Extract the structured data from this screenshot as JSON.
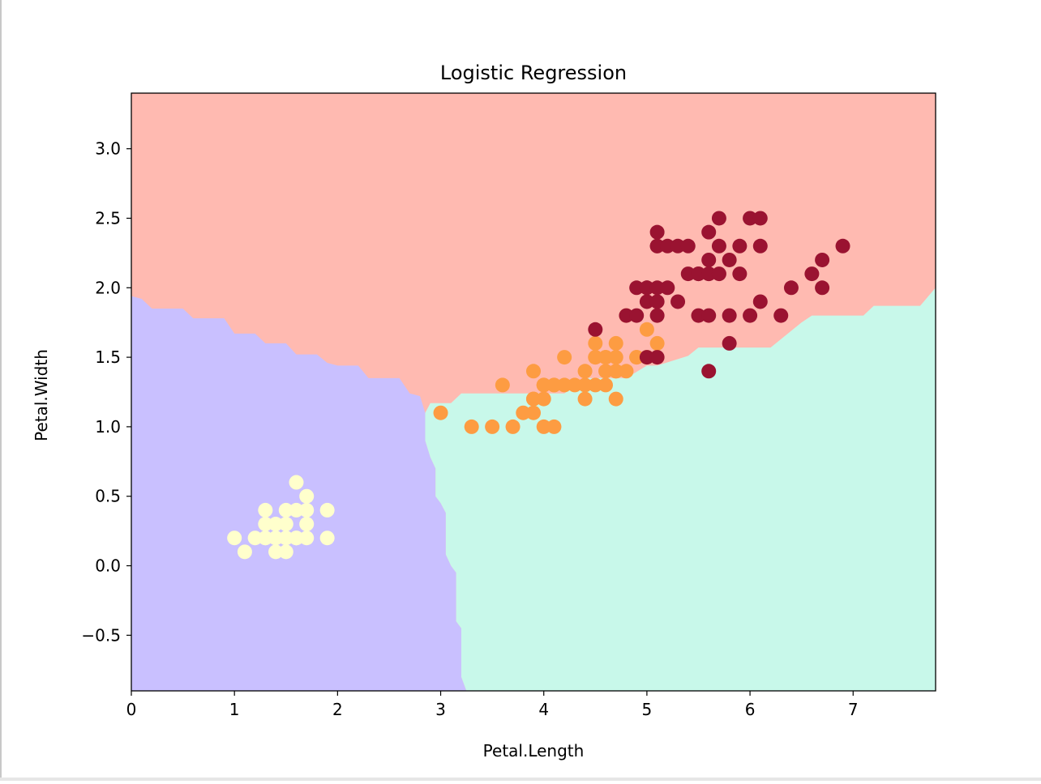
{
  "chart_data": {
    "type": "scatter",
    "title": "Logistic Regression",
    "xlabel": "Petal.Length",
    "ylabel": "Petal.Width",
    "xlim": [
      0,
      7.8
    ],
    "ylim": [
      -0.9,
      3.4
    ],
    "grid": false,
    "legend": "none",
    "x_ticks": [
      {
        "value": 0,
        "label": "0"
      },
      {
        "value": 1,
        "label": "1"
      },
      {
        "value": 2,
        "label": "2"
      },
      {
        "value": 3,
        "label": "3"
      },
      {
        "value": 4,
        "label": "4"
      },
      {
        "value": 5,
        "label": "5"
      },
      {
        "value": 6,
        "label": "6"
      },
      {
        "value": 7,
        "label": "7"
      }
    ],
    "y_ticks": [
      {
        "value": -0.5,
        "label": "−0.5"
      },
      {
        "value": 0.0,
        "label": "0.0"
      },
      {
        "value": 0.5,
        "label": "0.5"
      },
      {
        "value": 1.0,
        "label": "1.0"
      },
      {
        "value": 1.5,
        "label": "1.5"
      },
      {
        "value": 2.0,
        "label": "2.0"
      },
      {
        "value": 2.5,
        "label": "2.5"
      },
      {
        "value": 3.0,
        "label": "3.0"
      }
    ],
    "regions": [
      {
        "color": "#c9c0ff",
        "boundary": [
          [
            0,
            1.94
          ],
          [
            0.1,
            1.92
          ],
          [
            0.2,
            1.85
          ],
          [
            0.5,
            1.85
          ],
          [
            0.6,
            1.78
          ],
          [
            0.9,
            1.78
          ],
          [
            1.0,
            1.67
          ],
          [
            1.2,
            1.67
          ],
          [
            1.3,
            1.6
          ],
          [
            1.5,
            1.6
          ],
          [
            1.6,
            1.52
          ],
          [
            1.8,
            1.52
          ],
          [
            1.9,
            1.46
          ],
          [
            2.0,
            1.44
          ],
          [
            2.2,
            1.44
          ],
          [
            2.3,
            1.35
          ],
          [
            2.6,
            1.35
          ],
          [
            2.7,
            1.24
          ],
          [
            2.8,
            1.22
          ],
          [
            2.85,
            1.1
          ],
          [
            2.85,
            0.9
          ],
          [
            2.9,
            0.78
          ],
          [
            2.95,
            0.7
          ],
          [
            2.95,
            0.5
          ],
          [
            3.0,
            0.45
          ],
          [
            3.05,
            0.38
          ],
          [
            3.05,
            0.08
          ],
          [
            3.1,
            0.0
          ],
          [
            3.15,
            -0.05
          ],
          [
            3.15,
            -0.4
          ],
          [
            3.2,
            -0.45
          ],
          [
            3.2,
            -0.8
          ],
          [
            3.25,
            -0.9
          ]
        ]
      },
      {
        "color": "#c8f8ea",
        "boundary": [
          [
            2.9,
            1.17
          ],
          [
            3.1,
            1.17
          ],
          [
            3.2,
            1.24
          ],
          [
            4.2,
            1.24
          ],
          [
            4.4,
            1.35
          ],
          [
            4.8,
            1.35
          ],
          [
            5.0,
            1.44
          ],
          [
            5.1,
            1.44
          ],
          [
            5.4,
            1.51
          ],
          [
            5.5,
            1.57
          ],
          [
            6.2,
            1.57
          ],
          [
            6.5,
            1.75
          ],
          [
            6.6,
            1.8
          ],
          [
            7.1,
            1.8
          ],
          [
            7.2,
            1.87
          ],
          [
            7.65,
            1.87
          ],
          [
            7.8,
            2.0
          ]
        ]
      },
      {
        "color": "#ffbab1",
        "label": "top"
      }
    ],
    "series": [
      {
        "color": "#ffffcc",
        "x": [
          1.0,
          1.1,
          1.2,
          1.3,
          1.3,
          1.3,
          1.3,
          1.4,
          1.4,
          1.4,
          1.4,
          1.5,
          1.5,
          1.5,
          1.5,
          1.5,
          1.6,
          1.6,
          1.6,
          1.6,
          1.7,
          1.7,
          1.7,
          1.7,
          1.9,
          1.9,
          1.6,
          1.4
        ],
        "y": [
          0.2,
          0.1,
          0.2,
          0.2,
          0.3,
          0.4,
          0.2,
          0.1,
          0.2,
          0.3,
          0.2,
          0.1,
          0.2,
          0.3,
          0.4,
          0.2,
          0.2,
          0.4,
          0.6,
          0.2,
          0.2,
          0.3,
          0.4,
          0.5,
          0.2,
          0.4,
          0.2,
          0.2
        ]
      },
      {
        "color": "#fd9c42",
        "x": [
          3.0,
          3.3,
          3.5,
          3.7,
          3.8,
          3.9,
          3.9,
          3.9,
          4.0,
          4.0,
          4.0,
          4.0,
          4.1,
          4.1,
          4.2,
          4.2,
          4.3,
          4.4,
          4.4,
          4.4,
          4.5,
          4.5,
          4.5,
          4.5,
          4.6,
          4.6,
          4.6,
          4.6,
          4.7,
          4.7,
          4.7,
          4.7,
          4.7,
          4.8,
          4.9,
          4.9,
          5.0,
          5.0,
          5.1,
          4.8,
          3.6,
          3.9,
          4.1
        ],
        "y": [
          1.1,
          1.0,
          1.0,
          1.0,
          1.1,
          1.1,
          1.2,
          1.4,
          1.0,
          1.2,
          1.3,
          1.3,
          1.0,
          1.3,
          1.3,
          1.5,
          1.3,
          1.2,
          1.3,
          1.4,
          1.3,
          1.5,
          1.5,
          1.6,
          1.3,
          1.4,
          1.5,
          1.5,
          1.2,
          1.4,
          1.4,
          1.5,
          1.6,
          1.4,
          1.5,
          1.5,
          1.5,
          1.7,
          1.6,
          1.8,
          1.3,
          1.2,
          1.3
        ]
      },
      {
        "color": "#9a1331",
        "x": [
          4.5,
          4.8,
          4.9,
          4.9,
          5.0,
          5.0,
          5.0,
          5.0,
          5.1,
          5.1,
          5.1,
          5.1,
          5.1,
          5.1,
          5.1,
          5.2,
          5.2,
          5.3,
          5.3,
          5.4,
          5.4,
          5.5,
          5.5,
          5.5,
          5.6,
          5.6,
          5.6,
          5.6,
          5.6,
          5.6,
          5.7,
          5.7,
          5.7,
          5.8,
          5.8,
          5.8,
          5.9,
          5.9,
          6.0,
          6.0,
          6.1,
          6.1,
          6.1,
          6.3,
          6.4,
          6.6,
          6.7,
          6.7,
          6.9
        ],
        "y": [
          1.7,
          1.8,
          1.8,
          2.0,
          1.5,
          1.9,
          2.0,
          2.0,
          1.5,
          1.8,
          1.9,
          2.0,
          2.3,
          2.3,
          2.4,
          2.0,
          2.3,
          1.9,
          2.3,
          2.1,
          2.3,
          1.8,
          2.1,
          2.1,
          1.4,
          1.8,
          2.1,
          2.2,
          2.4,
          2.1,
          2.1,
          2.3,
          2.5,
          1.6,
          1.8,
          2.2,
          2.1,
          2.3,
          1.8,
          2.5,
          1.9,
          2.3,
          2.5,
          1.8,
          2.0,
          2.1,
          2.0,
          2.2,
          2.3
        ]
      }
    ]
  }
}
